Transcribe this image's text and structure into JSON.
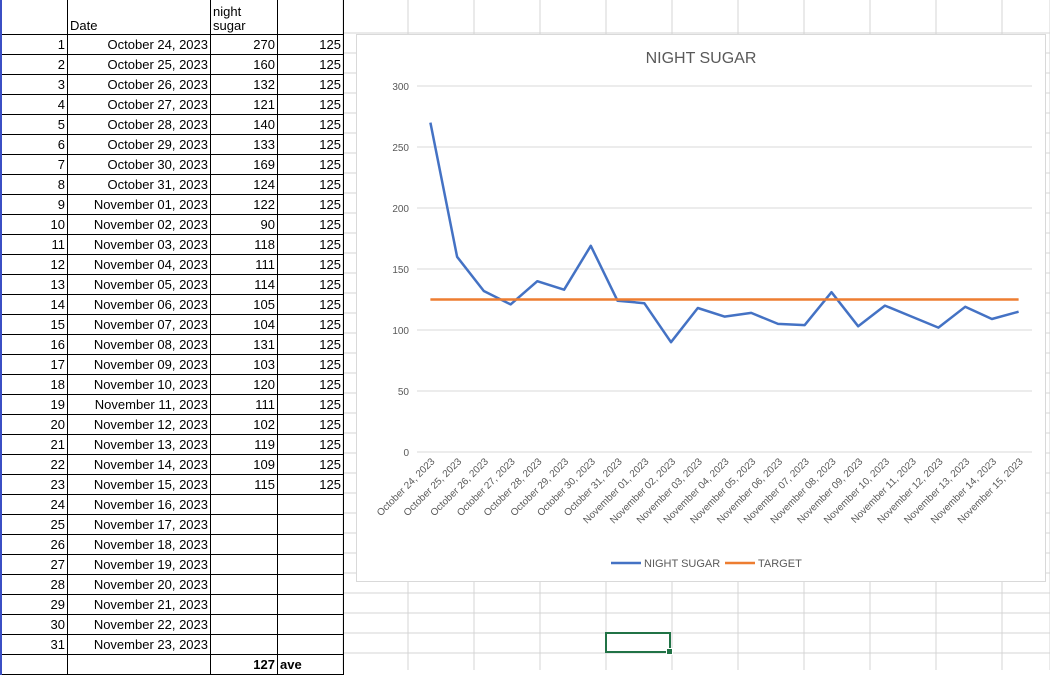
{
  "sheet": {
    "header": {
      "date_label": "Date",
      "sugar_label": "night sugar"
    },
    "rows": [
      {
        "n": "1",
        "date": "October 24, 2023",
        "sugar": "270",
        "target": "125"
      },
      {
        "n": "2",
        "date": "October 25, 2023",
        "sugar": "160",
        "target": "125"
      },
      {
        "n": "3",
        "date": "October 26, 2023",
        "sugar": "132",
        "target": "125"
      },
      {
        "n": "4",
        "date": "October 27, 2023",
        "sugar": "121",
        "target": "125"
      },
      {
        "n": "5",
        "date": "October 28, 2023",
        "sugar": "140",
        "target": "125"
      },
      {
        "n": "6",
        "date": "October 29, 2023",
        "sugar": "133",
        "target": "125"
      },
      {
        "n": "7",
        "date": "October 30, 2023",
        "sugar": "169",
        "target": "125"
      },
      {
        "n": "8",
        "date": "October 31, 2023",
        "sugar": "124",
        "target": "125"
      },
      {
        "n": "9",
        "date": "November 01, 2023",
        "sugar": "122",
        "target": "125"
      },
      {
        "n": "10",
        "date": "November 02, 2023",
        "sugar": "90",
        "target": "125"
      },
      {
        "n": "11",
        "date": "November 03, 2023",
        "sugar": "118",
        "target": "125"
      },
      {
        "n": "12",
        "date": "November 04, 2023",
        "sugar": "111",
        "target": "125"
      },
      {
        "n": "13",
        "date": "November 05, 2023",
        "sugar": "114",
        "target": "125"
      },
      {
        "n": "14",
        "date": "November 06, 2023",
        "sugar": "105",
        "target": "125"
      },
      {
        "n": "15",
        "date": "November 07, 2023",
        "sugar": "104",
        "target": "125"
      },
      {
        "n": "16",
        "date": "November 08, 2023",
        "sugar": "131",
        "target": "125"
      },
      {
        "n": "17",
        "date": "November 09, 2023",
        "sugar": "103",
        "target": "125"
      },
      {
        "n": "18",
        "date": "November 10, 2023",
        "sugar": "120",
        "target": "125"
      },
      {
        "n": "19",
        "date": "November 11, 2023",
        "sugar": "111",
        "target": "125"
      },
      {
        "n": "20",
        "date": "November 12, 2023",
        "sugar": "102",
        "target": "125"
      },
      {
        "n": "21",
        "date": "November 13, 2023",
        "sugar": "119",
        "target": "125"
      },
      {
        "n": "22",
        "date": "November 14, 2023",
        "sugar": "109",
        "target": "125"
      },
      {
        "n": "23",
        "date": "November 15, 2023",
        "sugar": "115",
        "target": "125"
      },
      {
        "n": "24",
        "date": "November 16, 2023",
        "sugar": "",
        "target": ""
      },
      {
        "n": "25",
        "date": "November 17, 2023",
        "sugar": "",
        "target": ""
      },
      {
        "n": "26",
        "date": "November 18, 2023",
        "sugar": "",
        "target": ""
      },
      {
        "n": "27",
        "date": "November 19, 2023",
        "sugar": "",
        "target": ""
      },
      {
        "n": "28",
        "date": "November 20, 2023",
        "sugar": "",
        "target": ""
      },
      {
        "n": "29",
        "date": "November 21, 2023",
        "sugar": "",
        "target": ""
      },
      {
        "n": "30",
        "date": "November 22, 2023",
        "sugar": "",
        "target": ""
      },
      {
        "n": "31",
        "date": "November 23, 2023",
        "sugar": "",
        "target": ""
      }
    ],
    "summary": {
      "average_value": "127",
      "average_label": "ave"
    }
  },
  "colors": {
    "series1": "#4472C4",
    "series2": "#ED7D31",
    "selection": "#217346"
  },
  "chart_data": {
    "type": "line",
    "title": "NIGHT SUGAR",
    "categories": [
      "October 24, 2023",
      "October 25, 2023",
      "October 26, 2023",
      "October 27, 2023",
      "October 28, 2023",
      "October 29, 2023",
      "October 30, 2023",
      "October 31, 2023",
      "November 01, 2023",
      "November 02, 2023",
      "November 03, 2023",
      "November 04, 2023",
      "November 05, 2023",
      "November 06, 2023",
      "November 07, 2023",
      "November 08, 2023",
      "November 09, 2023",
      "November 10, 2023",
      "November 11, 2023",
      "November 12, 2023",
      "November 13, 2023",
      "November 14, 2023",
      "November 15, 2023"
    ],
    "series": [
      {
        "name": "NIGHT SUGAR",
        "values": [
          270,
          160,
          132,
          121,
          140,
          133,
          169,
          124,
          122,
          90,
          118,
          111,
          114,
          105,
          104,
          131,
          103,
          120,
          111,
          102,
          119,
          109,
          115
        ]
      },
      {
        "name": "TARGET",
        "values": [
          125,
          125,
          125,
          125,
          125,
          125,
          125,
          125,
          125,
          125,
          125,
          125,
          125,
          125,
          125,
          125,
          125,
          125,
          125,
          125,
          125,
          125,
          125
        ]
      }
    ],
    "yticks": [
      "0",
      "50",
      "100",
      "150",
      "200",
      "250",
      "300"
    ],
    "ylim": [
      0,
      300
    ],
    "grid": true,
    "legend": "bottom"
  }
}
